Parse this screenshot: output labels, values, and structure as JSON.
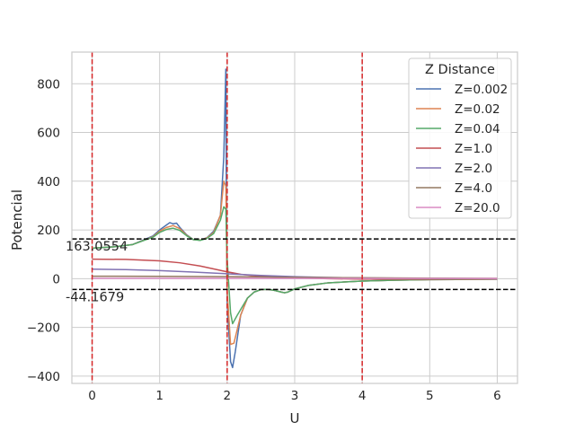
{
  "chart_data": {
    "type": "line",
    "title": "",
    "xlabel": "U",
    "ylabel": "Potencial",
    "xlim": [
      -0.3,
      6.3
    ],
    "ylim": [
      -430,
      930
    ],
    "xticks": [
      0,
      1,
      2,
      3,
      4,
      5,
      6
    ],
    "yticks": [
      -400,
      -200,
      0,
      200,
      400,
      600,
      800
    ],
    "xtick_labels": [
      "0",
      "1",
      "2",
      "3",
      "4",
      "5",
      "6"
    ],
    "ytick_labels": [
      "−400",
      "−200",
      "0",
      "200",
      "400",
      "600",
      "800"
    ],
    "grid": true,
    "legend": {
      "title": "Z Distance",
      "placement": "top-right"
    },
    "vlines": [
      {
        "x": 0,
        "color": "#d62728",
        "style": "dashed"
      },
      {
        "x": 2,
        "color": "#d62728",
        "style": "dashed"
      },
      {
        "x": 4,
        "color": "#d62728",
        "style": "dashed"
      }
    ],
    "hlines": [
      {
        "y": 163.0554,
        "label": "163.0554",
        "color": "#000000",
        "style": "dashed"
      },
      {
        "y": -44.1679,
        "label": "-44.1679",
        "color": "#000000",
        "style": "dashed"
      }
    ],
    "series": [
      {
        "name": "Z=0.002",
        "color": "#4c72b0",
        "points": [
          [
            0,
            125
          ],
          [
            0.3,
            130
          ],
          [
            0.6,
            140
          ],
          [
            0.9,
            175
          ],
          [
            1.0,
            200
          ],
          [
            1.1,
            220
          ],
          [
            1.15,
            230
          ],
          [
            1.2,
            225
          ],
          [
            1.25,
            228
          ],
          [
            1.3,
            210
          ],
          [
            1.4,
            180
          ],
          [
            1.5,
            160
          ],
          [
            1.6,
            158
          ],
          [
            1.7,
            168
          ],
          [
            1.8,
            195
          ],
          [
            1.9,
            260
          ],
          [
            1.95,
            500
          ],
          [
            1.98,
            860
          ],
          [
            1.99,
            200
          ],
          [
            2.0,
            -100
          ],
          [
            2.05,
            -340
          ],
          [
            2.08,
            -365
          ],
          [
            2.12,
            -300
          ],
          [
            2.2,
            -150
          ],
          [
            2.3,
            -80
          ],
          [
            2.4,
            -55
          ],
          [
            2.5,
            -45
          ],
          [
            2.6,
            -44
          ],
          [
            2.7,
            -48
          ],
          [
            2.8,
            -55
          ],
          [
            2.85,
            -58
          ],
          [
            2.9,
            -55
          ],
          [
            3.0,
            -42
          ],
          [
            3.2,
            -28
          ],
          [
            3.5,
            -17
          ],
          [
            4.0,
            -10
          ],
          [
            4.5,
            -6
          ],
          [
            5.0,
            -4
          ],
          [
            5.5,
            -3
          ],
          [
            6.0,
            -2
          ]
        ]
      },
      {
        "name": "Z=0.02",
        "color": "#dd8452",
        "points": [
          [
            0,
            125
          ],
          [
            0.3,
            130
          ],
          [
            0.6,
            140
          ],
          [
            0.9,
            172
          ],
          [
            1.0,
            195
          ],
          [
            1.1,
            210
          ],
          [
            1.2,
            218
          ],
          [
            1.3,
            205
          ],
          [
            1.4,
            178
          ],
          [
            1.5,
            160
          ],
          [
            1.6,
            158
          ],
          [
            1.7,
            167
          ],
          [
            1.8,
            190
          ],
          [
            1.9,
            260
          ],
          [
            1.95,
            400
          ],
          [
            1.98,
            380
          ],
          [
            2.0,
            -50
          ],
          [
            2.05,
            -270
          ],
          [
            2.1,
            -265
          ],
          [
            2.2,
            -150
          ],
          [
            2.3,
            -80
          ],
          [
            2.4,
            -55
          ],
          [
            2.5,
            -45
          ],
          [
            2.6,
            -44
          ],
          [
            2.7,
            -48
          ],
          [
            2.8,
            -55
          ],
          [
            2.85,
            -58
          ],
          [
            2.9,
            -55
          ],
          [
            3.0,
            -42
          ],
          [
            3.2,
            -28
          ],
          [
            3.5,
            -17
          ],
          [
            4.0,
            -10
          ],
          [
            4.5,
            -6
          ],
          [
            5.0,
            -4
          ],
          [
            5.5,
            -3
          ],
          [
            6.0,
            -2
          ]
        ]
      },
      {
        "name": "Z=0.04",
        "color": "#55a868",
        "points": [
          [
            0,
            125
          ],
          [
            0.3,
            130
          ],
          [
            0.6,
            140
          ],
          [
            0.9,
            170
          ],
          [
            1.0,
            190
          ],
          [
            1.1,
            202
          ],
          [
            1.2,
            207
          ],
          [
            1.3,
            198
          ],
          [
            1.4,
            176
          ],
          [
            1.5,
            160
          ],
          [
            1.6,
            157
          ],
          [
            1.7,
            165
          ],
          [
            1.8,
            185
          ],
          [
            1.9,
            240
          ],
          [
            1.95,
            295
          ],
          [
            1.98,
            285
          ],
          [
            2.0,
            80
          ],
          [
            2.05,
            -140
          ],
          [
            2.08,
            -185
          ],
          [
            2.15,
            -150
          ],
          [
            2.3,
            -80
          ],
          [
            2.4,
            -55
          ],
          [
            2.5,
            -45
          ],
          [
            2.6,
            -44
          ],
          [
            2.7,
            -48
          ],
          [
            2.8,
            -55
          ],
          [
            2.85,
            -58
          ],
          [
            2.9,
            -55
          ],
          [
            3.0,
            -42
          ],
          [
            3.2,
            -28
          ],
          [
            3.5,
            -17
          ],
          [
            4.0,
            -10
          ],
          [
            4.5,
            -6
          ],
          [
            5.0,
            -4
          ],
          [
            5.5,
            -3
          ],
          [
            6.0,
            -2
          ]
        ]
      },
      {
        "name": "Z=1.0",
        "color": "#c44e52",
        "points": [
          [
            0,
            80
          ],
          [
            0.5,
            79
          ],
          [
            1.0,
            73
          ],
          [
            1.3,
            65
          ],
          [
            1.6,
            52
          ],
          [
            1.8,
            40
          ],
          [
            2.0,
            28
          ],
          [
            2.2,
            18
          ],
          [
            2.5,
            9
          ],
          [
            3.0,
            3
          ],
          [
            3.5,
            0
          ],
          [
            4.0,
            -2
          ],
          [
            5.0,
            -2
          ],
          [
            6.0,
            -1
          ]
        ]
      },
      {
        "name": "Z=2.0",
        "color": "#8172b3",
        "points": [
          [
            0,
            39
          ],
          [
            0.5,
            37
          ],
          [
            1.0,
            33
          ],
          [
            1.5,
            27
          ],
          [
            2.0,
            20
          ],
          [
            2.5,
            13
          ],
          [
            3.0,
            8
          ],
          [
            3.5,
            5
          ],
          [
            4.0,
            3
          ],
          [
            5.0,
            1
          ],
          [
            6.0,
            0
          ]
        ]
      },
      {
        "name": "Z=4.0",
        "color": "#937860",
        "points": [
          [
            0,
            10
          ],
          [
            1.0,
            9.5
          ],
          [
            2.0,
            8
          ],
          [
            3.0,
            5.5
          ],
          [
            4.0,
            3.5
          ],
          [
            5.0,
            2
          ],
          [
            6.0,
            1
          ]
        ]
      },
      {
        "name": "Z=20.0",
        "color": "#da8bc3",
        "points": [
          [
            0,
            1
          ],
          [
            2.0,
            1
          ],
          [
            4.0,
            0.8
          ],
          [
            6.0,
            0.6
          ]
        ]
      }
    ]
  }
}
